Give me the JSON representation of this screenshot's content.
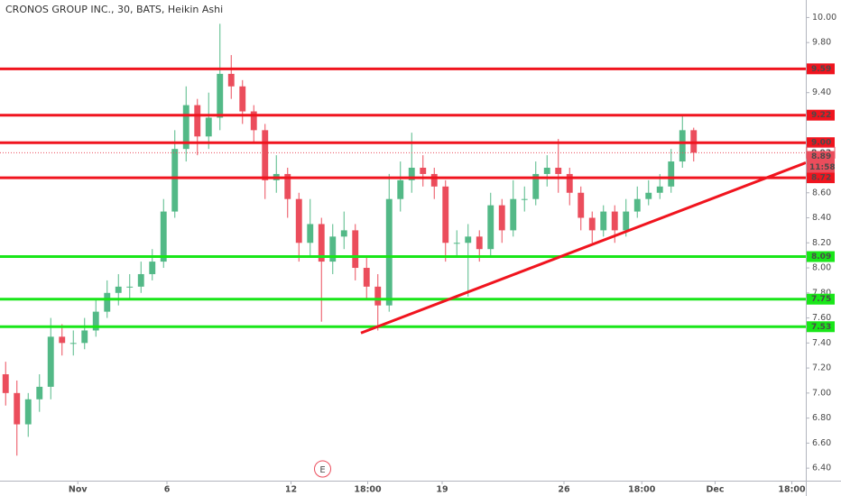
{
  "chart_data": {
    "type": "candlestick",
    "title": "CRONOS GROUP INC., 30, BATS, Heikin Ashi",
    "up_color": "#53b987",
    "down_color": "#eb4d5c",
    "open": [
      7.15,
      7.0,
      6.75,
      6.95,
      7.05,
      7.45,
      7.4,
      7.4,
      7.5,
      7.65,
      7.8,
      7.85,
      7.85,
      7.95,
      8.05,
      8.45,
      8.95,
      9.3,
      9.05,
      9.2,
      9.55,
      9.45,
      9.25,
      9.1,
      8.7,
      8.75,
      8.55,
      8.2,
      8.35,
      8.05,
      8.25,
      8.3,
      8.0,
      7.85,
      7.7,
      8.55,
      8.7,
      8.8,
      8.75,
      8.65,
      8.2,
      8.2,
      8.25,
      8.15,
      8.5,
      8.3,
      8.55,
      8.55,
      8.75,
      8.8,
      8.75,
      8.6,
      8.4,
      8.3,
      8.45,
      8.3,
      8.45,
      8.55,
      8.6,
      8.65,
      8.85,
      9.1
    ],
    "high": [
      7.25,
      7.1,
      7.0,
      7.15,
      7.6,
      7.55,
      7.5,
      7.6,
      7.75,
      7.9,
      7.95,
      7.95,
      8.05,
      8.15,
      8.55,
      9.1,
      9.45,
      9.35,
      9.4,
      9.95,
      9.7,
      9.5,
      9.3,
      9.15,
      8.9,
      8.8,
      8.6,
      8.55,
      8.4,
      8.35,
      8.45,
      8.35,
      8.1,
      7.95,
      8.75,
      8.85,
      9.08,
      8.9,
      8.8,
      8.7,
      8.3,
      8.35,
      8.3,
      8.6,
      8.55,
      8.7,
      8.65,
      8.85,
      8.9,
      9.03,
      8.8,
      8.65,
      8.45,
      8.5,
      8.5,
      8.55,
      8.65,
      8.7,
      8.75,
      8.95,
      9.22,
      9.12
    ],
    "low": [
      6.9,
      6.5,
      6.65,
      6.85,
      6.95,
      7.3,
      7.3,
      7.35,
      7.45,
      7.6,
      7.7,
      7.75,
      7.8,
      7.9,
      8.0,
      8.4,
      8.85,
      8.9,
      8.95,
      9.1,
      9.35,
      9.15,
      9.0,
      8.55,
      8.6,
      8.4,
      8.05,
      8.1,
      7.57,
      7.95,
      8.15,
      7.9,
      7.75,
      7.5,
      7.65,
      8.45,
      8.6,
      8.65,
      8.55,
      8.05,
      8.1,
      7.77,
      8.05,
      8.1,
      8.2,
      8.25,
      8.45,
      8.5,
      8.65,
      8.6,
      8.5,
      8.3,
      8.2,
      8.25,
      8.2,
      8.25,
      8.4,
      8.5,
      8.55,
      8.6,
      8.8,
      8.85
    ],
    "close": [
      7.0,
      6.75,
      6.95,
      7.05,
      7.45,
      7.4,
      7.4,
      7.5,
      7.65,
      7.8,
      7.85,
      7.85,
      7.95,
      8.05,
      8.45,
      8.95,
      9.3,
      9.05,
      9.2,
      9.55,
      9.45,
      9.25,
      9.1,
      8.7,
      8.75,
      8.55,
      8.2,
      8.35,
      8.05,
      8.25,
      8.3,
      8.0,
      7.85,
      7.7,
      8.55,
      8.7,
      8.8,
      8.75,
      8.65,
      8.2,
      8.2,
      8.25,
      8.15,
      8.5,
      8.3,
      8.55,
      8.55,
      8.75,
      8.8,
      8.75,
      8.6,
      8.4,
      8.3,
      8.45,
      8.3,
      8.45,
      8.55,
      8.6,
      8.65,
      8.85,
      9.1,
      8.92
    ],
    "xlim": [
      0,
      71.44
    ],
    "xticks": [
      {
        "value": 6.9,
        "label": "Nov"
      },
      {
        "value": 14.8,
        "label": "6"
      },
      {
        "value": 25.8,
        "label": "12"
      },
      {
        "value": 32.6,
        "label": "18:00"
      },
      {
        "value": 39.2,
        "label": "19"
      },
      {
        "value": 50,
        "label": "26"
      },
      {
        "value": 56.9,
        "label": "18:00"
      },
      {
        "value": 63.4,
        "label": "Dec"
      },
      {
        "value": 70.2,
        "label": "18:00"
      }
    ],
    "ylim": [
      6.3,
      10.14
    ],
    "yticks": [
      {
        "value": 6.4,
        "label": "6.40"
      },
      {
        "value": 6.6,
        "label": "6.60"
      },
      {
        "value": 6.8,
        "label": "6.80"
      },
      {
        "value": 7.0,
        "label": "7.00"
      },
      {
        "value": 7.2,
        "label": "7.20"
      },
      {
        "value": 7.4,
        "label": "7.40"
      },
      {
        "value": 7.6,
        "label": "7.60"
      },
      {
        "value": 7.8,
        "label": "7.80"
      },
      {
        "value": 8.0,
        "label": "8.00"
      },
      {
        "value": 8.2,
        "label": "8.20"
      },
      {
        "value": 8.4,
        "label": "8.40"
      },
      {
        "value": 8.6,
        "label": "8.60"
      },
      {
        "value": 8.8,
        "label": "8.80"
      },
      {
        "value": 9.0,
        "label": "9.00"
      },
      {
        "value": 9.2,
        "label": "9.20"
      },
      {
        "value": 9.4,
        "label": "9.40"
      },
      {
        "value": 9.6,
        "label": "9.60"
      },
      {
        "value": 9.8,
        "label": "9.80"
      },
      {
        "value": 10.0,
        "label": "10.00"
      }
    ],
    "levels": [
      {
        "value": 9.59,
        "color": "#f0141e"
      },
      {
        "value": 9.22,
        "color": "#f0141e"
      },
      {
        "value": 9.0,
        "label": "9.00",
        "color": "#f0141e"
      },
      {
        "value": 8.72,
        "color": "#f0141e"
      },
      {
        "value": 8.09,
        "color": "#19e619"
      },
      {
        "value": 7.75,
        "color": "#19e619"
      },
      {
        "value": 7.53,
        "color": "#19e619"
      }
    ],
    "price_line": 8.92,
    "last_price": 8.89,
    "countdown": "11:58",
    "trendline": {
      "x": [
        32,
        71.44
      ],
      "y": [
        7.48,
        8.84
      ],
      "color": "#f0141e"
    },
    "event": {
      "x": 28.6,
      "label": "E"
    }
  }
}
